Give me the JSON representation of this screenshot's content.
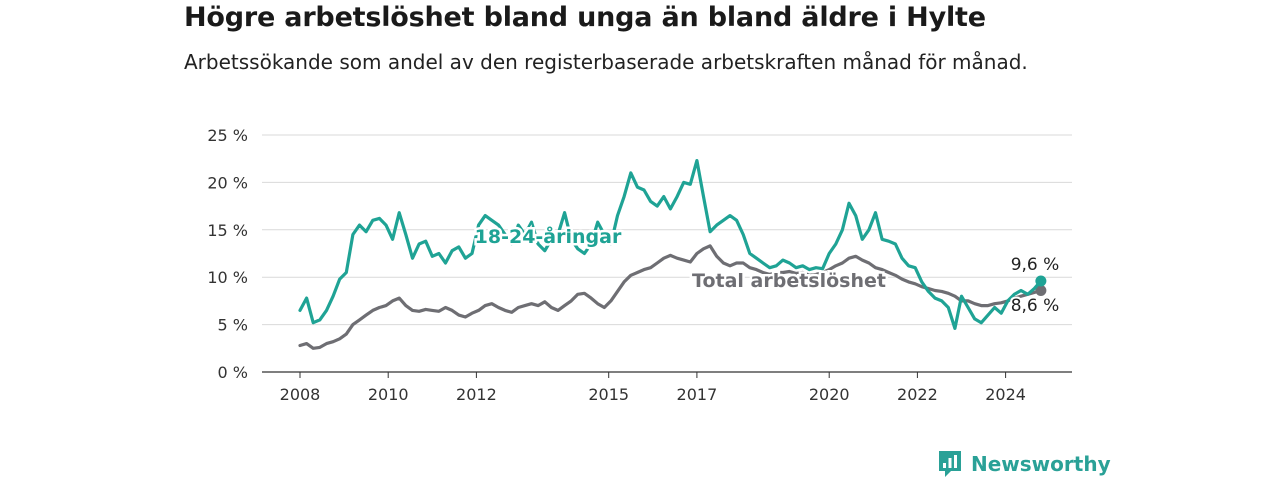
{
  "header": {
    "title": "Högre arbetslöshet bland unga än bland äldre i Hylte",
    "subtitle": "Arbetssökande som andel av den registerbaserade arbetskraften månad för månad."
  },
  "brand": {
    "name": "Newsworthy",
    "color": "#2aa197",
    "icon": "newsworthy-logo-icon"
  },
  "chart_data": {
    "type": "line",
    "ylim": [
      0,
      25
    ],
    "y_ticks": [
      0,
      5,
      10,
      15,
      20,
      25
    ],
    "y_tick_labels": [
      "0 %",
      "5 %",
      "10 %",
      "15 %",
      "20 %",
      "25 %"
    ],
    "x_range": [
      2008,
      2025.6
    ],
    "x_ticks": [
      2008,
      2010,
      2012,
      2015,
      2017,
      2020,
      2022,
      2024
    ],
    "x_tick_labels": [
      "2008",
      "2010",
      "2012",
      "2015",
      "2017",
      "2020",
      "2022",
      "2024"
    ],
    "grid": true,
    "end_labels": {
      "youth": "9,6 %",
      "total": "8,6 %"
    },
    "series": [
      {
        "name": "18-24-åringar",
        "color": "#1fa395",
        "x": [
          2008.0,
          2008.15,
          2008.3,
          2008.45,
          2008.6,
          2008.75,
          2008.9,
          2009.05,
          2009.2,
          2009.35,
          2009.5,
          2009.65,
          2009.8,
          2009.95,
          2010.1,
          2010.25,
          2010.4,
          2010.55,
          2010.7,
          2010.85,
          2011.0,
          2011.15,
          2011.3,
          2011.45,
          2011.6,
          2011.75,
          2011.9,
          2012.05,
          2012.2,
          2012.35,
          2012.5,
          2012.65,
          2012.8,
          2012.95,
          2013.1,
          2013.25,
          2013.4,
          2013.55,
          2013.7,
          2013.85,
          2014.0,
          2014.15,
          2014.3,
          2014.45,
          2014.6,
          2014.75,
          2014.9,
          2015.05,
          2015.2,
          2015.35,
          2015.5,
          2015.65,
          2015.8,
          2015.95,
          2016.1,
          2016.25,
          2016.4,
          2016.55,
          2016.7,
          2016.85,
          2017.0,
          2017.15,
          2017.3,
          2017.45,
          2017.6,
          2017.75,
          2017.9,
          2018.05,
          2018.2,
          2018.35,
          2018.5,
          2018.65,
          2018.8,
          2018.95,
          2019.1,
          2019.25,
          2019.4,
          2019.55,
          2019.7,
          2019.85,
          2020.0,
          2020.15,
          2020.3,
          2020.45,
          2020.6,
          2020.75,
          2020.9,
          2021.05,
          2021.2,
          2021.35,
          2021.5,
          2021.65,
          2021.8,
          2021.95,
          2022.1,
          2022.25,
          2022.4,
          2022.55,
          2022.7,
          2022.85,
          2023.0,
          2023.15,
          2023.3,
          2023.45,
          2023.6,
          2023.75,
          2023.9,
          2024.05,
          2024.2,
          2024.35,
          2024.5,
          2024.65,
          2024.8
        ],
        "values": [
          6.5,
          7.8,
          5.2,
          5.5,
          6.5,
          8.0,
          9.8,
          10.5,
          14.5,
          15.5,
          14.8,
          16.0,
          16.2,
          15.5,
          14.0,
          16.8,
          14.5,
          12.0,
          13.5,
          13.8,
          12.2,
          12.5,
          11.5,
          12.8,
          13.2,
          12.0,
          12.5,
          15.5,
          16.5,
          16.0,
          15.5,
          14.5,
          13.5,
          15.5,
          14.5,
          15.8,
          13.5,
          12.8,
          14.0,
          14.5,
          16.8,
          14.0,
          13.0,
          12.5,
          13.5,
          15.8,
          14.5,
          13.5,
          16.5,
          18.5,
          21.0,
          19.5,
          19.2,
          18.0,
          17.5,
          18.5,
          17.2,
          18.5,
          20.0,
          19.8,
          22.3,
          18.5,
          14.8,
          15.5,
          16.0,
          16.5,
          16.0,
          14.5,
          12.5,
          12.0,
          11.5,
          11.0,
          11.2,
          11.8,
          11.5,
          11.0,
          11.2,
          10.8,
          11.0,
          10.9,
          12.5,
          13.5,
          15.0,
          17.8,
          16.5,
          14.0,
          15.0,
          16.8,
          14.0,
          13.8,
          13.5,
          12.0,
          11.2,
          11.0,
          9.5,
          8.5,
          7.8,
          7.5,
          6.8,
          4.6,
          8.0,
          6.8,
          5.6,
          5.2,
          6.0,
          6.8,
          6.2,
          7.5,
          8.2,
          8.6,
          8.2,
          8.8,
          9.6
        ]
      },
      {
        "name": "Total arbetslöshet",
        "color": "#6e6e73",
        "x": [
          2008.0,
          2008.15,
          2008.3,
          2008.45,
          2008.6,
          2008.75,
          2008.9,
          2009.05,
          2009.2,
          2009.35,
          2009.5,
          2009.65,
          2009.8,
          2009.95,
          2010.1,
          2010.25,
          2010.4,
          2010.55,
          2010.7,
          2010.85,
          2011.0,
          2011.15,
          2011.3,
          2011.45,
          2011.6,
          2011.75,
          2011.9,
          2012.05,
          2012.2,
          2012.35,
          2012.5,
          2012.65,
          2012.8,
          2012.95,
          2013.1,
          2013.25,
          2013.4,
          2013.55,
          2013.7,
          2013.85,
          2014.0,
          2014.15,
          2014.3,
          2014.45,
          2014.6,
          2014.75,
          2014.9,
          2015.05,
          2015.2,
          2015.35,
          2015.5,
          2015.65,
          2015.8,
          2015.95,
          2016.1,
          2016.25,
          2016.4,
          2016.55,
          2016.7,
          2016.85,
          2017.0,
          2017.15,
          2017.3,
          2017.45,
          2017.6,
          2017.75,
          2017.9,
          2018.05,
          2018.2,
          2018.35,
          2018.5,
          2018.65,
          2018.8,
          2018.95,
          2019.1,
          2019.25,
          2019.4,
          2019.55,
          2019.7,
          2019.85,
          2020.0,
          2020.15,
          2020.3,
          2020.45,
          2020.6,
          2020.75,
          2020.9,
          2021.05,
          2021.2,
          2021.35,
          2021.5,
          2021.65,
          2021.8,
          2021.95,
          2022.1,
          2022.25,
          2022.4,
          2022.55,
          2022.7,
          2022.85,
          2023.0,
          2023.15,
          2023.3,
          2023.45,
          2023.6,
          2023.75,
          2023.9,
          2024.05,
          2024.2,
          2024.35,
          2024.5,
          2024.65,
          2024.8
        ],
        "values": [
          2.8,
          3.0,
          2.5,
          2.6,
          3.0,
          3.2,
          3.5,
          4.0,
          5.0,
          5.5,
          6.0,
          6.5,
          6.8,
          7.0,
          7.5,
          7.8,
          7.0,
          6.5,
          6.4,
          6.6,
          6.5,
          6.4,
          6.8,
          6.5,
          6.0,
          5.8,
          6.2,
          6.5,
          7.0,
          7.2,
          6.8,
          6.5,
          6.3,
          6.8,
          7.0,
          7.2,
          7.0,
          7.4,
          6.8,
          6.5,
          7.0,
          7.5,
          8.2,
          8.3,
          7.8,
          7.2,
          6.8,
          7.5,
          8.5,
          9.5,
          10.2,
          10.5,
          10.8,
          11.0,
          11.5,
          12.0,
          12.3,
          12.0,
          11.8,
          11.6,
          12.5,
          13.0,
          13.3,
          12.2,
          11.5,
          11.2,
          11.5,
          11.5,
          11.0,
          10.8,
          10.5,
          10.3,
          10.5,
          10.5,
          10.6,
          10.4,
          10.5,
          10.2,
          10.3,
          10.5,
          10.8,
          11.2,
          11.5,
          12.0,
          12.2,
          11.8,
          11.5,
          11.0,
          10.8,
          10.5,
          10.2,
          9.8,
          9.5,
          9.3,
          9.0,
          8.8,
          8.6,
          8.5,
          8.3,
          8.0,
          7.5,
          7.5,
          7.2,
          7.0,
          7.0,
          7.2,
          7.3,
          7.5,
          7.8,
          8.0,
          8.2,
          8.4,
          8.6
        ]
      }
    ]
  }
}
